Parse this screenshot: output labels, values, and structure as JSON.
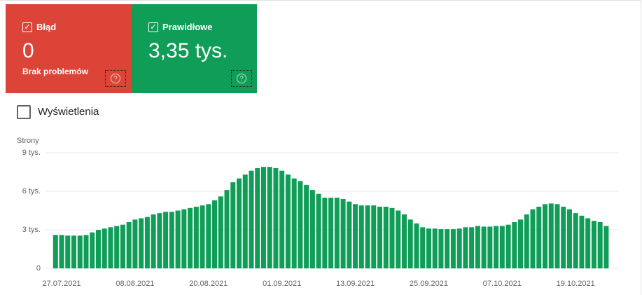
{
  "cards": [
    {
      "label": "Błąd",
      "value": "0",
      "sub": "Brak problemów"
    },
    {
      "label": "Prawidłowe",
      "value": "3,35 tys."
    }
  ],
  "toggle": "Wyświetlenia",
  "chart_data": {
    "type": "bar",
    "y_label": "Strony",
    "color": "#0f9d58",
    "grid": true,
    "ylim": [
      0,
      9000
    ],
    "yticks": [
      0,
      {
        "value": 3000,
        "label": "3 tys."
      },
      {
        "value": 6000,
        "label": "6 tys."
      },
      {
        "value": 9000,
        "label": "9 tys."
      }
    ],
    "categories": [
      null,
      "27.07.2021",
      null,
      null,
      null,
      null,
      null,
      null,
      null,
      null,
      null,
      null,
      null,
      "08.08.2021",
      null,
      null,
      null,
      null,
      null,
      null,
      null,
      null,
      null,
      null,
      null,
      "20.08.2021",
      null,
      null,
      null,
      null,
      null,
      null,
      null,
      null,
      null,
      null,
      null,
      "01.09.2021",
      null,
      null,
      null,
      null,
      null,
      null,
      null,
      null,
      null,
      null,
      null,
      "13.09.2021",
      null,
      null,
      null,
      null,
      null,
      null,
      null,
      null,
      null,
      null,
      null,
      "25.09.2021",
      null,
      null,
      null,
      null,
      null,
      null,
      null,
      null,
      null,
      null,
      null,
      "07.10.2021",
      null,
      null,
      null,
      null,
      null,
      null,
      null,
      null,
      null,
      null,
      null,
      "19.10.2021",
      null,
      null,
      null,
      null,
      null
    ],
    "values": [
      2600,
      2600,
      2550,
      2550,
      2550,
      2600,
      2800,
      3000,
      3100,
      3200,
      3300,
      3400,
      3600,
      3800,
      3900,
      4000,
      4200,
      4300,
      4400,
      4400,
      4500,
      4600,
      4700,
      4800,
      4900,
      5000,
      5300,
      5600,
      6100,
      6700,
      7000,
      7300,
      7600,
      7800,
      7900,
      7900,
      7800,
      7600,
      7300,
      7000,
      6800,
      6500,
      6100,
      5800,
      5500,
      5500,
      5500,
      5400,
      5200,
      5000,
      4900,
      4900,
      4900,
      4800,
      4800,
      4700,
      4500,
      4200,
      3800,
      3500,
      3200,
      3100,
      3100,
      3050,
      3050,
      3050,
      3100,
      3200,
      3200,
      3300,
      3250,
      3250,
      3300,
      3300,
      3400,
      3600,
      3800,
      4200,
      4600,
      4800,
      5000,
      5050,
      5000,
      4800,
      4600,
      4300,
      4100,
      3900,
      3700,
      3600,
      3300
    ]
  }
}
